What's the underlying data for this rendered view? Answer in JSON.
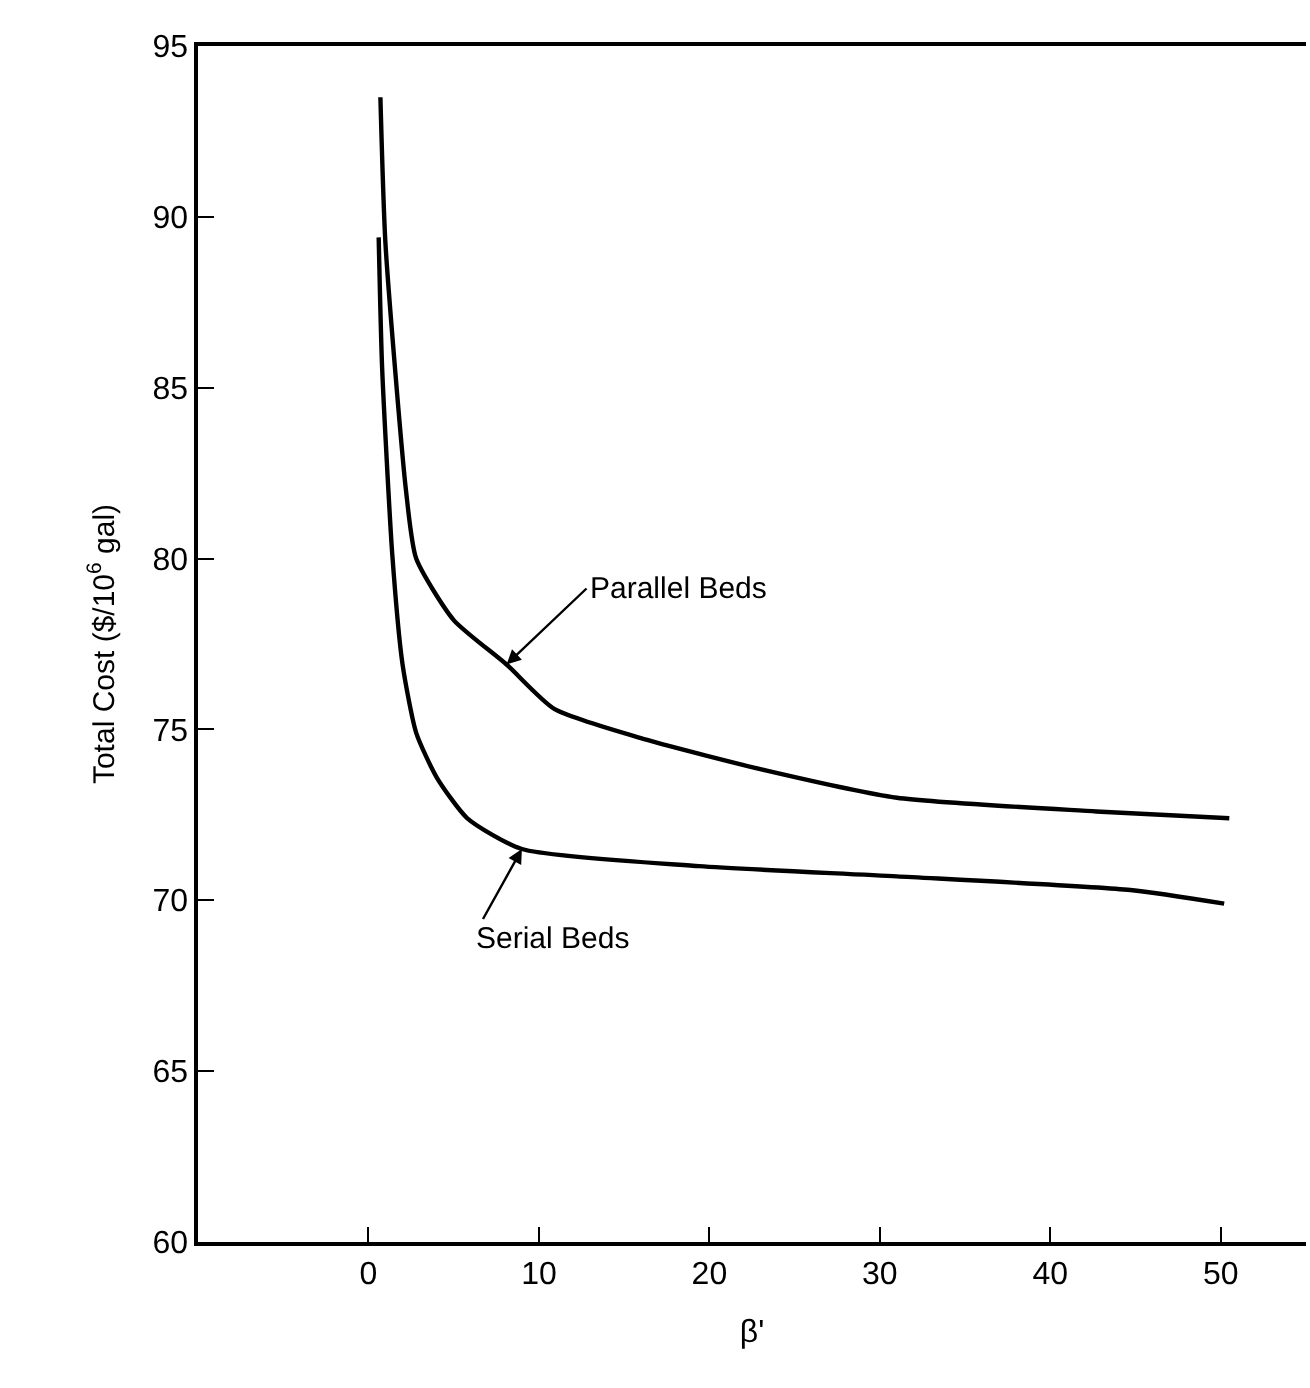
{
  "chart_data": {
    "type": "line",
    "xlabel": "β'",
    "ylabel": "Total Cost ($/10$^{6}$ gal)",
    "xlim": [
      -10,
      55
    ],
    "xticks": [
      0,
      10,
      20,
      30,
      40,
      50
    ],
    "ylim": [
      60,
      95
    ],
    "yticks": [
      60,
      65,
      70,
      75,
      80,
      85,
      90,
      95
    ],
    "marker": "none",
    "line_style": "solid",
    "series": [
      {
        "color": "#000000",
        "x": [
          0.7,
          1.0,
          2.2,
          2.8,
          5.0,
          8.1,
          10.9,
          16.3,
          23.3,
          31,
          42.7,
          50.5
        ],
        "values": [
          93.5,
          89.2,
          82.0,
          80.0,
          78.2,
          76.9,
          75.6,
          74.7,
          73.8,
          73.0,
          72.6,
          72.4
        ]
      },
      {
        "color": "#000000",
        "x": [
          0.6,
          0.8,
          1.4,
          2.0,
          2.8,
          4.0,
          5.8,
          9.0,
          19.4,
          31,
          44.7,
          50.2
        ],
        "values": [
          89.4,
          85.6,
          80.1,
          76.9,
          74.9,
          73.6,
          72.4,
          71.5,
          71.0,
          70.7,
          70.3,
          69.9
        ]
      }
    ],
    "annotations": [
      {
        "text": "Parallel Beds",
        "x": 8.1,
        "y": 76.9
      },
      {
        "text": "Serial Beds",
        "x": 9.0,
        "y": 71.5
      }
    ]
  }
}
